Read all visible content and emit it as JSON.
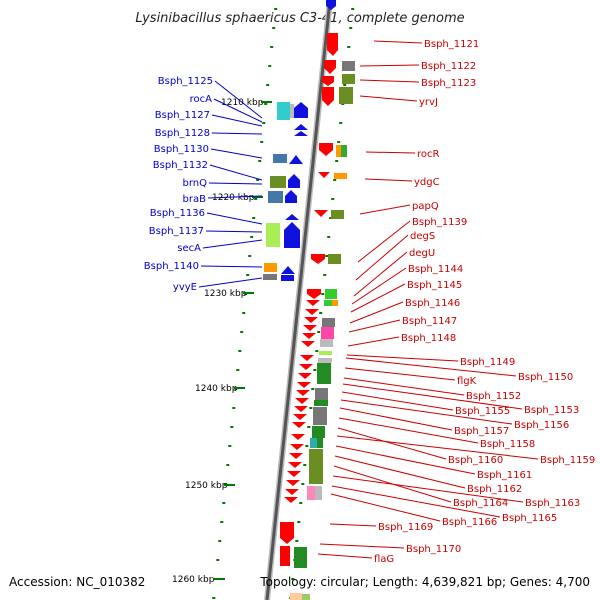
{
  "title": "Lysinibacillus sphaericus C3-41, complete genome",
  "kbp_labels": [
    "1210 kbp",
    "1220 kbp",
    "1230 kbp",
    "1240 kbp",
    "1250 kbp",
    "1260 kbp"
  ],
  "left_labels": [
    "Bsph_1125",
    "rocA",
    "Bsph_1127",
    "Bsph_1128",
    "Bsph_1130",
    "Bsph_1132",
    "brnQ",
    "braB",
    "Bsph_1136",
    "Bsph_1137",
    "secA",
    "Bsph_1140",
    "yvyE"
  ],
  "right_labels": [
    "Bsph_1121",
    "Bsph_1122",
    "Bsph_1123",
    "yrvJ",
    "rocR",
    "ydgC",
    "papQ",
    "Bsph_1139",
    "degS",
    "degU",
    "Bsph_1144",
    "Bsph_1145",
    "Bsph_1146",
    "Bsph_1147",
    "Bsph_1148",
    "Bsph_1149",
    "Bsph_1150",
    "flgK",
    "Bsph_1152",
    "Bsph_1153",
    "Bsph_1155",
    "Bsph_1156",
    "Bsph_1157",
    "Bsph_1158",
    "Bsph_1160",
    "Bsph_1159",
    "Bsph_1161",
    "Bsph_1162",
    "Bsph_1164",
    "Bsph_1163",
    "Bsph_1165",
    "Bsph_1166",
    "Bsph_1169",
    "Bsph_1170",
    "flaG"
  ],
  "footer": {
    "accession": "Accession: NC_010382",
    "topology": "Topology: circular; Length: 4,639,821 bp; Genes: 4,700"
  },
  "colors": {
    "left_strand": "#1111dd",
    "right_strand": "#ff0000",
    "left_label": "#0000cc",
    "right_label": "#cc0000",
    "tick": "#007a00"
  }
}
